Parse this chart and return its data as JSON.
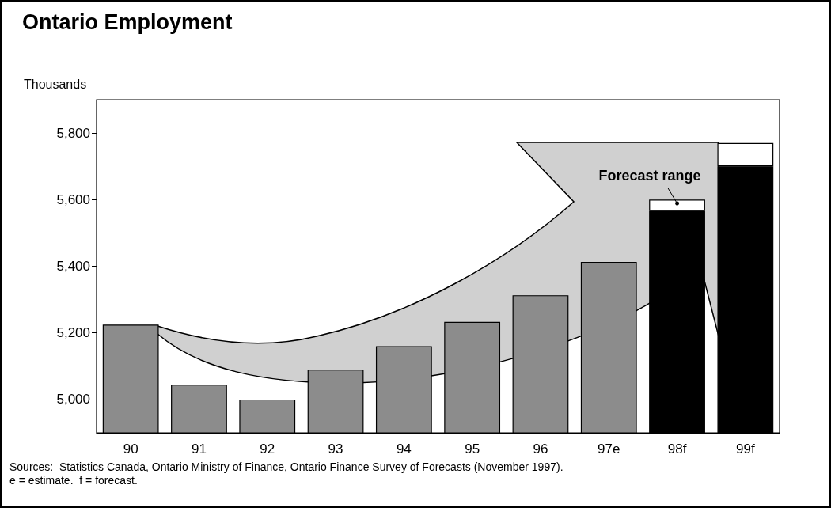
{
  "chart_data": {
    "type": "bar",
    "title": "Ontario Employment",
    "ylabel": "Thousands",
    "categories": [
      "90",
      "91",
      "92",
      "93",
      "94",
      "95",
      "96",
      "97e",
      "98f",
      "99f"
    ],
    "series": [
      {
        "colors": [
          "#8c8c8c",
          "#8c8c8c",
          "#8c8c8c",
          "#8c8c8c",
          "#8c8c8c",
          "#8c8c8c",
          "#8c8c8c",
          "#8c8c8c",
          "#000000",
          "#000000"
        ],
        "values": [
          5225,
          5045,
          5000,
          5090,
          5160,
          5233,
          5313,
          5413,
          5567,
          5700
        ]
      },
      {
        "color": "#ffffff",
        "base": [
          null,
          null,
          null,
          null,
          null,
          null,
          null,
          null,
          5567,
          5700
        ],
        "values": [
          null,
          null,
          null,
          null,
          null,
          null,
          null,
          null,
          33,
          70
        ]
      }
    ],
    "ylim": [
      4900,
      5900
    ],
    "yticks": [
      {
        "value": 5000,
        "label": "5,000"
      },
      {
        "value": 5200,
        "label": "5,200"
      },
      {
        "value": 5400,
        "label": "5,400"
      },
      {
        "value": 5600,
        "label": "5,600"
      },
      {
        "value": 5800,
        "label": "5,800"
      }
    ],
    "grid": false,
    "annotations": [
      "Forecast range",
      "Sources:  Statistics Canada, Ontario Ministry of Finance, Ontario Finance Survey of Forecasts (November 1997).",
      "e = estimate.  f = forecast."
    ]
  }
}
